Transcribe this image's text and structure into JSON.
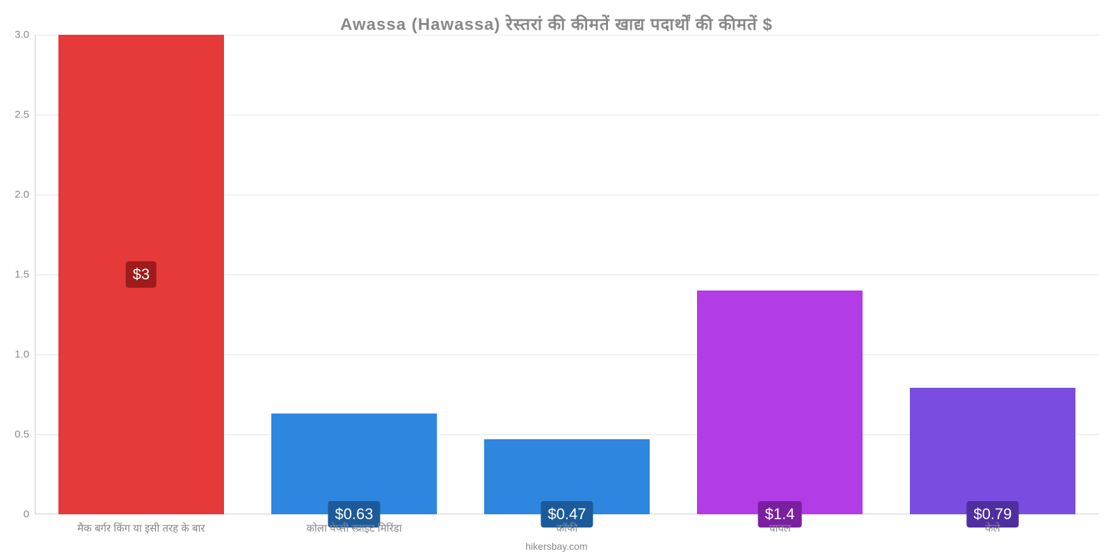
{
  "chart": {
    "type": "bar",
    "title": "Awassa (Hawassa) रेस्तरां की कीमतें खाद्य पदार्थों की कीमतें $",
    "title_color": "#888888",
    "title_fontsize": 24,
    "background_color": "#ffffff",
    "grid_color": "#e6e6e6",
    "axis_line_color": "#cccccc",
    "label_color": "#888888",
    "label_fontsize": 15,
    "value_label_fontsize": 22,
    "bar_width": 0.78,
    "ylim": [
      0,
      3.0
    ],
    "ytick_step": 0.5,
    "yticks": [
      "0",
      "0.5",
      "1.0",
      "1.5",
      "2.0",
      "2.5",
      "3.0"
    ],
    "categories": [
      "मैक बर्गर किंग या इसी तरह के बार",
      "कोला पेप्सी स्प्राइट मिरिंडा",
      "कॉफी",
      "चावल",
      "केले"
    ],
    "values": [
      3.0,
      0.63,
      0.47,
      1.4,
      0.79
    ],
    "value_labels": [
      "$3",
      "$0.63",
      "$0.47",
      "$1.4",
      "$0.79"
    ],
    "bar_colors": [
      "#e63939",
      "#2e86de",
      "#2e86de",
      "#b23ce6",
      "#7a4de0"
    ],
    "badge_colors": [
      "#9e1c1c",
      "#1d5a99",
      "#1d5a99",
      "#7a1fa0",
      "#4f2ea0"
    ],
    "value_label_positions": [
      "center",
      "below",
      "below",
      "below",
      "below"
    ],
    "footer": "hikersbay.com",
    "footer_color": "#888888",
    "footer_fontsize": 14
  }
}
